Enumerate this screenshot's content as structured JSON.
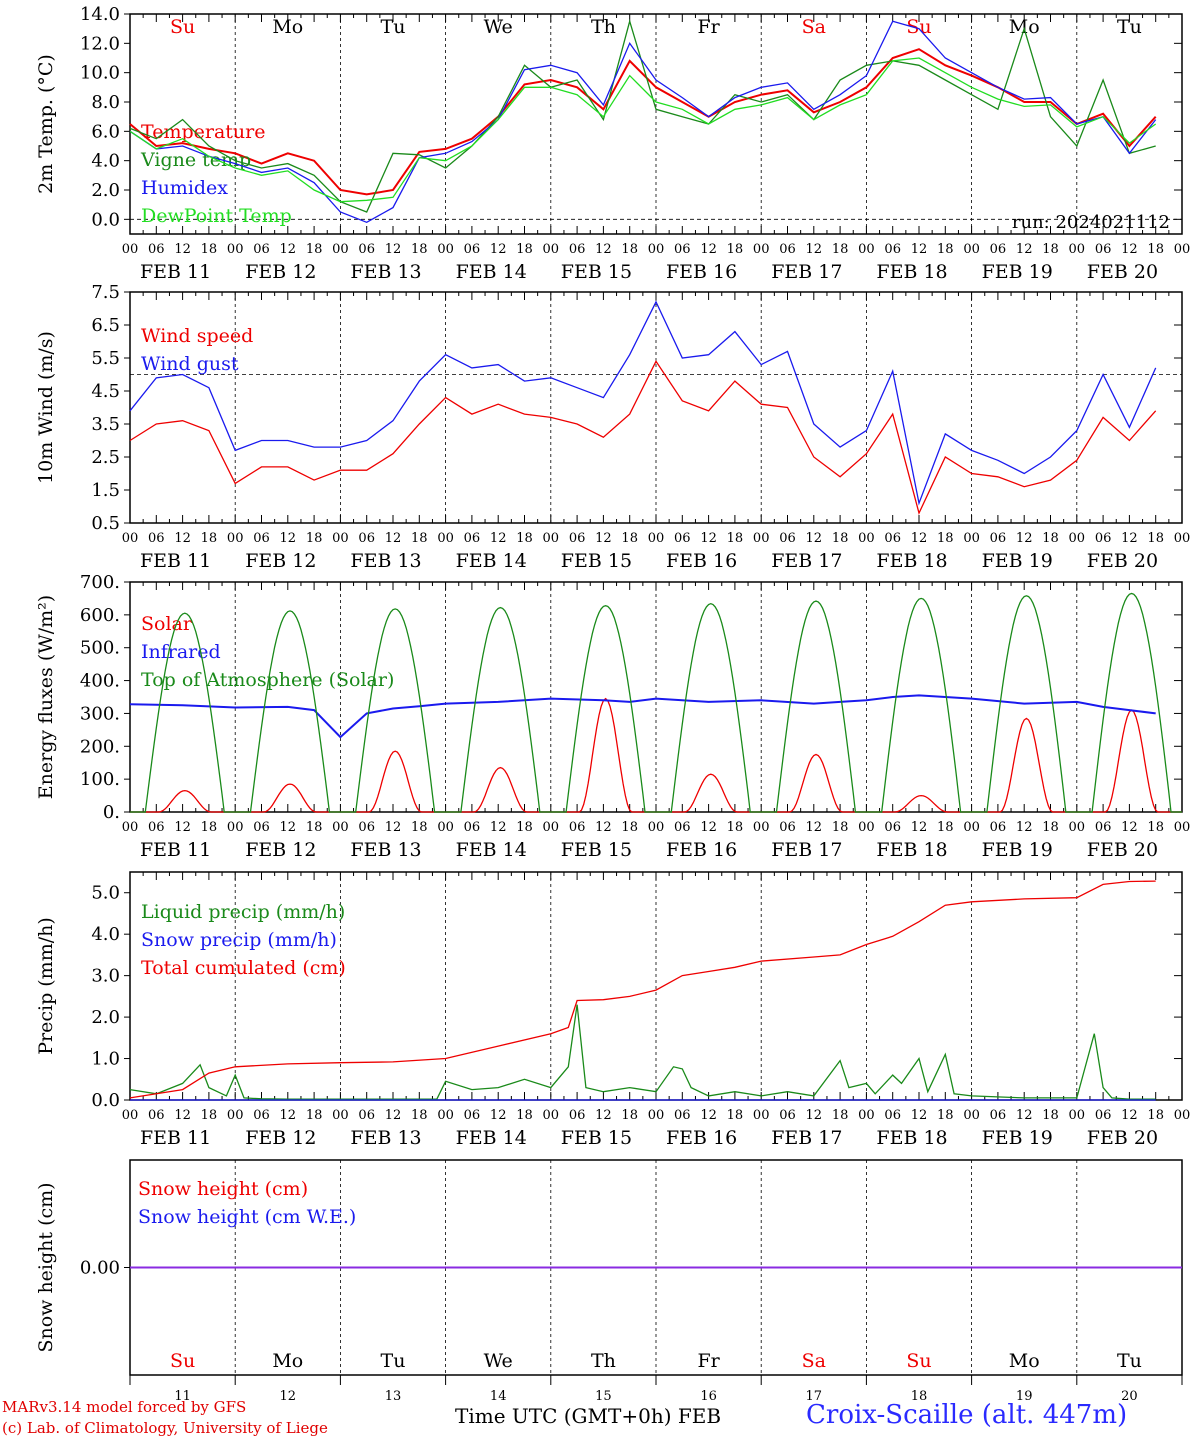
{
  "chart_data": [
    {
      "type": "line",
      "panel": "temperature",
      "ylabel": "2m Temp. (°C)",
      "ylim": [
        -1.0,
        14.0
      ],
      "yticks": [
        "14.0",
        "12.0",
        "10.0",
        "8.0",
        "6.0",
        "4.0",
        "2.0",
        "0.0"
      ],
      "ytick_values": [
        14,
        12,
        10,
        8,
        6,
        4,
        2,
        0
      ],
      "day_labels": [
        "Su",
        "Mo",
        "Tu",
        "We",
        "Th",
        "Fr",
        "Sa",
        "Su",
        "Mo",
        "Tu"
      ],
      "day_label_colors": [
        "#ee0000",
        "#000000",
        "#000000",
        "#000000",
        "#000000",
        "#000000",
        "#ee0000",
        "#ee0000",
        "#000000",
        "#000000"
      ],
      "hour_ticks": [
        "00",
        "06",
        "12",
        "18"
      ],
      "date_labels": [
        "FEB 11",
        "FEB 12",
        "FEB 13",
        "FEB 14",
        "FEB 15",
        "FEB 16",
        "FEB 17",
        "FEB 18",
        "FEB 19",
        "FEB 20"
      ],
      "annotation": "run: 2024021112",
      "reference_line": 0,
      "series": [
        {
          "name": "Temperature",
          "color": "#ee0000",
          "x": [
            0,
            6,
            12,
            18,
            24,
            30,
            36,
            42,
            48,
            54,
            60,
            66,
            72,
            78,
            84,
            90,
            96,
            102,
            108,
            114,
            120,
            126,
            132,
            138,
            144,
            150,
            156,
            162,
            168,
            174,
            180,
            186,
            192,
            198,
            204,
            210,
            216,
            222,
            228,
            234
          ],
          "y": [
            6.5,
            5.0,
            5.2,
            4.8,
            4.5,
            3.8,
            4.5,
            4.0,
            2.0,
            1.7,
            2.0,
            4.6,
            4.8,
            5.5,
            7.0,
            9.2,
            9.5,
            9.0,
            7.5,
            10.8,
            9.0,
            8.0,
            7.0,
            8.0,
            8.5,
            8.8,
            7.3,
            8.0,
            9.0,
            11.0,
            11.6,
            10.5,
            9.8,
            9.0,
            8.0,
            8.0,
            6.5,
            7.2,
            5.0,
            7.0
          ]
        },
        {
          "name": "Vigne temp",
          "color": "#1a8a1a",
          "x": [
            0,
            6,
            12,
            18,
            24,
            30,
            36,
            42,
            48,
            54,
            60,
            66,
            72,
            78,
            84,
            90,
            96,
            102,
            108,
            114,
            120,
            126,
            132,
            138,
            144,
            150,
            156,
            162,
            168,
            174,
            180,
            186,
            192,
            198,
            204,
            210,
            216,
            222,
            228,
            234
          ],
          "y": [
            6.2,
            5.5,
            6.8,
            5.0,
            4.0,
            3.5,
            3.8,
            3.0,
            1.2,
            0.5,
            4.5,
            4.4,
            3.5,
            5.0,
            7.0,
            10.5,
            9.0,
            9.5,
            6.8,
            13.5,
            7.5,
            7.0,
            6.5,
            8.5,
            8.0,
            8.5,
            6.8,
            9.5,
            10.5,
            10.8,
            10.5,
            9.5,
            8.5,
            7.5,
            13.0,
            7.0,
            5.0,
            9.5,
            4.5,
            5.0
          ]
        },
        {
          "name": "Humidex",
          "color": "#1a1aee",
          "x": [
            0,
            6,
            12,
            18,
            24,
            30,
            36,
            42,
            48,
            54,
            60,
            66,
            72,
            78,
            84,
            90,
            96,
            102,
            108,
            114,
            120,
            126,
            132,
            138,
            144,
            150,
            156,
            162,
            168,
            174,
            180,
            186,
            192,
            198,
            204,
            210,
            216,
            222,
            228,
            234
          ],
          "y": [
            6.0,
            4.8,
            5.0,
            4.3,
            3.8,
            3.2,
            3.5,
            2.5,
            0.5,
            -0.2,
            0.8,
            4.2,
            4.5,
            5.3,
            6.8,
            10.2,
            10.5,
            10.0,
            7.8,
            12.0,
            9.5,
            8.3,
            7.0,
            8.3,
            9.0,
            9.3,
            7.5,
            8.5,
            9.8,
            13.5,
            13.0,
            11.0,
            10.0,
            9.0,
            8.2,
            8.3,
            6.5,
            7.0,
            4.5,
            6.8
          ]
        },
        {
          "name": "DewPoint Temp",
          "color": "#22dd22",
          "x": [
            0,
            6,
            12,
            18,
            24,
            30,
            36,
            42,
            48,
            54,
            60,
            66,
            72,
            78,
            84,
            90,
            96,
            102,
            108,
            114,
            120,
            126,
            132,
            138,
            144,
            150,
            156,
            162,
            168,
            174,
            180,
            186,
            192,
            198,
            204,
            210,
            216,
            222,
            228,
            234
          ],
          "y": [
            6.0,
            4.8,
            5.5,
            4.3,
            3.5,
            3.0,
            3.3,
            2.0,
            1.2,
            1.3,
            1.5,
            4.2,
            4.0,
            5.0,
            6.8,
            9.0,
            9.0,
            8.5,
            7.0,
            9.8,
            8.0,
            7.5,
            6.5,
            7.5,
            7.8,
            8.3,
            6.8,
            7.8,
            8.5,
            10.8,
            11.0,
            10.0,
            9.0,
            8.2,
            7.7,
            7.8,
            6.3,
            7.0,
            5.2,
            6.5
          ]
        }
      ]
    },
    {
      "type": "line",
      "panel": "wind",
      "ylabel": "10m Wind (m/s)",
      "ylim": [
        0.5,
        7.5
      ],
      "yticks": [
        "7.5",
        "6.5",
        "5.5",
        "4.5",
        "3.5",
        "2.5",
        "1.5",
        "0.5"
      ],
      "ytick_values": [
        7.5,
        6.5,
        5.5,
        4.5,
        3.5,
        2.5,
        1.5,
        0.5
      ],
      "reference_line": 5,
      "hour_ticks": [
        "00",
        "06",
        "12",
        "18"
      ],
      "date_labels": [
        "FEB 11",
        "FEB 12",
        "FEB 13",
        "FEB 14",
        "FEB 15",
        "FEB 16",
        "FEB 17",
        "FEB 18",
        "FEB 19",
        "FEB 20"
      ],
      "series": [
        {
          "name": "Wind speed",
          "color": "#ee0000",
          "x": [
            0,
            6,
            12,
            18,
            24,
            30,
            36,
            42,
            48,
            54,
            60,
            66,
            72,
            78,
            84,
            90,
            96,
            102,
            108,
            114,
            120,
            126,
            132,
            138,
            144,
            150,
            156,
            162,
            168,
            174,
            180,
            186,
            192,
            198,
            204,
            210,
            216,
            222,
            228,
            234
          ],
          "y": [
            3.0,
            3.5,
            3.6,
            3.3,
            1.7,
            2.2,
            2.2,
            1.8,
            2.1,
            2.1,
            2.6,
            3.5,
            4.3,
            3.8,
            4.1,
            3.8,
            3.7,
            3.5,
            3.1,
            3.8,
            5.4,
            4.2,
            3.9,
            4.8,
            4.1,
            4.0,
            2.5,
            1.9,
            2.6,
            3.8,
            0.8,
            2.5,
            2.0,
            1.9,
            1.6,
            1.8,
            2.4,
            3.7,
            3.0,
            3.9
          ]
        },
        {
          "name": "Wind gust",
          "color": "#1a1aee",
          "x": [
            0,
            6,
            12,
            18,
            24,
            30,
            36,
            42,
            48,
            54,
            60,
            66,
            72,
            78,
            84,
            90,
            96,
            102,
            108,
            114,
            120,
            126,
            132,
            138,
            144,
            150,
            156,
            162,
            168,
            174,
            180,
            186,
            192,
            198,
            204,
            210,
            216,
            222,
            228,
            234
          ],
          "y": [
            3.9,
            4.9,
            5.0,
            4.6,
            2.7,
            3.0,
            3.0,
            2.8,
            2.8,
            3.0,
            3.6,
            4.8,
            5.6,
            5.2,
            5.3,
            4.8,
            4.9,
            4.6,
            4.3,
            5.6,
            7.2,
            5.5,
            5.6,
            6.3,
            5.3,
            5.7,
            3.5,
            2.8,
            3.3,
            5.1,
            1.1,
            3.2,
            2.7,
            2.4,
            2.0,
            2.5,
            3.3,
            5.0,
            3.4,
            5.2
          ]
        }
      ]
    },
    {
      "type": "line",
      "panel": "energy",
      "ylabel": "Energy fluxes (W/m²)",
      "ylim": [
        0,
        700
      ],
      "yticks": [
        "700.",
        "600.",
        "500.",
        "400.",
        "300.",
        "200.",
        "100.",
        "0."
      ],
      "ytick_values": [
        700,
        600,
        500,
        400,
        300,
        200,
        100,
        0
      ],
      "hour_ticks": [
        "00",
        "06",
        "12",
        "18"
      ],
      "date_labels": [
        "FEB 11",
        "FEB 12",
        "FEB 13",
        "FEB 14",
        "FEB 15",
        "FEB 16",
        "FEB 17",
        "FEB 18",
        "FEB 19",
        "FEB 20"
      ],
      "series": [
        {
          "name": "Solar",
          "color": "#ee0000",
          "daily_peak": [
            65,
            85,
            185,
            135,
            345,
            115,
            175,
            50,
            285,
            310
          ]
        },
        {
          "name": "Infrared",
          "color": "#1a1aee",
          "x": [
            0,
            12,
            24,
            36,
            42,
            48,
            54,
            60,
            66,
            72,
            84,
            96,
            108,
            114,
            120,
            132,
            144,
            156,
            162,
            168,
            174,
            180,
            192,
            204,
            216,
            222,
            228,
            234
          ],
          "y": [
            328,
            325,
            318,
            320,
            310,
            228,
            300,
            315,
            322,
            330,
            335,
            345,
            340,
            335,
            345,
            335,
            340,
            330,
            335,
            340,
            350,
            355,
            345,
            330,
            335,
            320,
            310,
            300
          ]
        },
        {
          "name": "Top of Atmosphere (Solar)",
          "color": "#1a8a1a",
          "daily_peak": [
            605,
            612,
            618,
            622,
            628,
            634,
            642,
            650,
            658,
            665
          ]
        }
      ]
    },
    {
      "type": "line",
      "panel": "precip",
      "ylabel": "Precip (mm/h)",
      "ylim": [
        0,
        5.5
      ],
      "yticks": [
        "5.0",
        "4.0",
        "3.0",
        "2.0",
        "1.0",
        "0.0"
      ],
      "ytick_values": [
        5,
        4,
        3,
        2,
        1,
        0
      ],
      "hour_ticks": [
        "00",
        "06",
        "12",
        "18"
      ],
      "date_labels": [
        "FEB 11",
        "FEB 12",
        "FEB 13",
        "FEB 14",
        "FEB 15",
        "FEB 16",
        "FEB 17",
        "FEB 18",
        "FEB 19",
        "FEB 20"
      ],
      "series": [
        {
          "name": "Liquid precip (mm/h)",
          "color": "#1a8a1a",
          "x": [
            0,
            6,
            12,
            16,
            18,
            22,
            24,
            26,
            30,
            36,
            48,
            60,
            70,
            72,
            78,
            84,
            90,
            96,
            100,
            102,
            104,
            108,
            114,
            120,
            124,
            126,
            128,
            132,
            138,
            144,
            150,
            156,
            162,
            164,
            168,
            170,
            174,
            176,
            180,
            182,
            186,
            188,
            192,
            204,
            216,
            220,
            222,
            224,
            228,
            234
          ],
          "y": [
            0.25,
            0.15,
            0.4,
            0.85,
            0.3,
            0.1,
            0.6,
            0.05,
            0.03,
            0.02,
            0.02,
            0.02,
            0.02,
            0.45,
            0.25,
            0.3,
            0.5,
            0.3,
            0.8,
            2.3,
            0.3,
            0.2,
            0.3,
            0.2,
            0.8,
            0.75,
            0.3,
            0.1,
            0.2,
            0.1,
            0.2,
            0.1,
            0.95,
            0.3,
            0.4,
            0.15,
            0.6,
            0.4,
            1.0,
            0.2,
            1.1,
            0.15,
            0.1,
            0.05,
            0.05,
            1.6,
            0.3,
            0.05,
            0.02,
            0.02
          ]
        },
        {
          "name": "Snow precip (mm/h)",
          "color": "#1a1aee",
          "x": [
            0,
            234
          ],
          "y": [
            0,
            0
          ]
        },
        {
          "name": "Total cumulated (cm)",
          "color": "#ee0000",
          "x": [
            0,
            12,
            18,
            24,
            36,
            48,
            60,
            72,
            84,
            96,
            100,
            102,
            108,
            114,
            120,
            126,
            132,
            138,
            144,
            156,
            162,
            168,
            174,
            180,
            186,
            192,
            204,
            216,
            222,
            228,
            234
          ],
          "y": [
            0.05,
            0.25,
            0.65,
            0.8,
            0.87,
            0.9,
            0.92,
            1.0,
            1.3,
            1.6,
            1.75,
            2.4,
            2.42,
            2.5,
            2.65,
            3.0,
            3.1,
            3.2,
            3.35,
            3.45,
            3.5,
            3.75,
            3.95,
            4.3,
            4.7,
            4.78,
            4.85,
            4.88,
            5.2,
            5.27,
            5.28
          ]
        }
      ]
    },
    {
      "type": "line",
      "panel": "snow",
      "ylabel": "Snow height (cm)",
      "ylim": [
        -1,
        1
      ],
      "yticks": [
        "0.00"
      ],
      "ytick_values": [
        0
      ],
      "day_labels": [
        "Su",
        "Mo",
        "Tu",
        "We",
        "Th",
        "Fr",
        "Sa",
        "Su",
        "Mo",
        "Tu"
      ],
      "day_label_colors": [
        "#ee0000",
        "#000000",
        "#000000",
        "#000000",
        "#000000",
        "#000000",
        "#ee0000",
        "#ee0000",
        "#000000",
        "#000000"
      ],
      "day_numbers": [
        "11",
        "12",
        "13",
        "14",
        "15",
        "16",
        "17",
        "18",
        "19",
        "20"
      ],
      "series": [
        {
          "name": "Snow height (cm)",
          "color": "#ee0000",
          "x": [
            0,
            234
          ],
          "y": [
            0,
            0
          ]
        },
        {
          "name": "Snow height (cm W.E.)",
          "color": "#1a1aee",
          "x": [
            0,
            234
          ],
          "y": [
            0,
            0
          ]
        }
      ],
      "line_color": "#8a2be2"
    }
  ],
  "footer": {
    "credit_line1": "MARv3.14 model forced by GFS",
    "credit_line2": "(c) Lab. of Climatology, University of Liege",
    "xaxis_title": "Time UTC (GMT+0h) FEB",
    "station": "Croix-Scaille (alt. 447m)"
  }
}
